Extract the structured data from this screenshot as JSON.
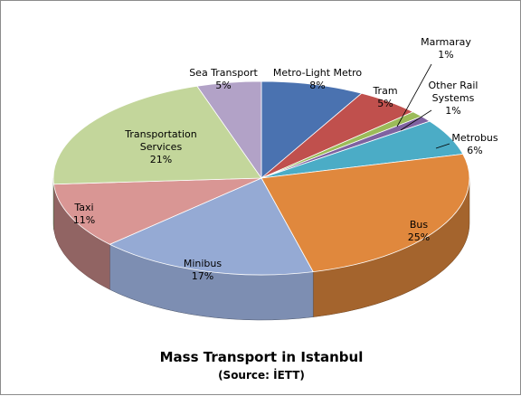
{
  "chart_data": {
    "type": "pie",
    "title": "Mass Transport in Istanbul",
    "subtitle": "(Source: İETT)",
    "slices": [
      {
        "label": "Metro-Light Metro",
        "value": 8,
        "display": "8%",
        "color": "#4a72b0"
      },
      {
        "label": "Tram",
        "value": 5,
        "display": "5%",
        "color": "#c0504d"
      },
      {
        "label": "Marmaray",
        "value": 1,
        "display": "1%",
        "color": "#9bbb59"
      },
      {
        "label": "Other Rail Systems",
        "value": 1,
        "display": "1%",
        "color": "#7f62a1"
      },
      {
        "label": "Metrobus",
        "value": 6,
        "display": "6%",
        "color": "#4bacc6"
      },
      {
        "label": "Bus",
        "value": 25,
        "display": "25%",
        "color": "#e0883d"
      },
      {
        "label": "Minibus",
        "value": 17,
        "display": "17%",
        "color": "#95aad4"
      },
      {
        "label": "Taxi",
        "value": 11,
        "display": "11%",
        "color": "#d99694"
      },
      {
        "label": "Transportation Services",
        "value": 21,
        "display": "21%",
        "color": "#c3d69b"
      },
      {
        "label": "Sea Transport",
        "value": 5,
        "display": "5%",
        "color": "#b2a2c7"
      }
    ]
  }
}
